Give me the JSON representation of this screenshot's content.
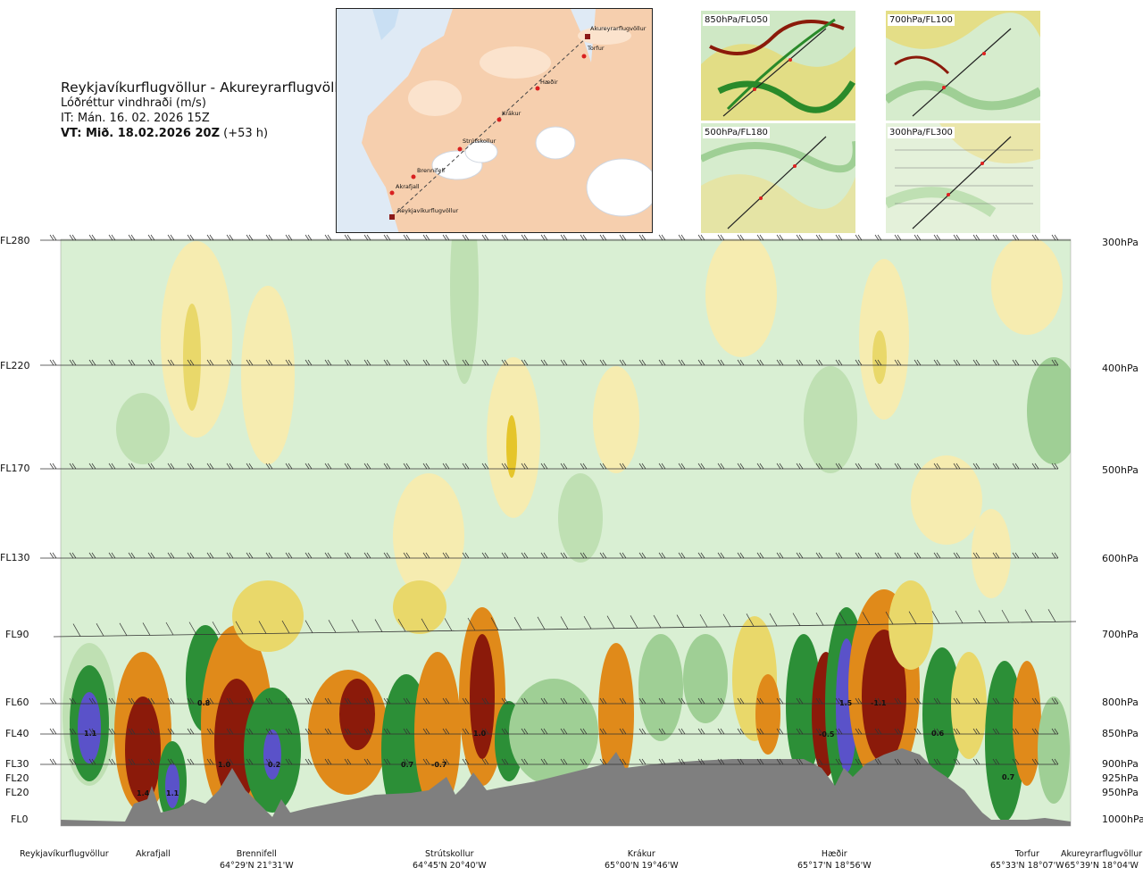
{
  "title": "Reykjavíkurflugvöllur - Akureyrarflugvöllur",
  "subtitle": "Lóðréttur vindhraði (m/s)",
  "it_label": "IT: Mán. 16. 02. 2026 15Z",
  "vt_label": "VT: Mið. 18.02.2026 20Z",
  "vt_offset": "(+53 h)",
  "map_labels": [
    {
      "name": "Akureyrarflugvöllur"
    },
    {
      "name": "Torfur"
    },
    {
      "name": "Hæðir"
    },
    {
      "name": "Krákur"
    },
    {
      "name": "Strútskollur"
    },
    {
      "name": "Brennifell"
    },
    {
      "name": "Akrafjall"
    },
    {
      "name": "Reykjavíkurflugvöllur"
    }
  ],
  "thumbnails": [
    {
      "label": "850hPa/FL050"
    },
    {
      "label": "700hPa/FL100"
    },
    {
      "label": "500hPa/FL180"
    },
    {
      "label": "300hPa/FL300"
    }
  ],
  "chart_data": {
    "type": "heatmap",
    "title": "Reykjavíkurflugvöllur - Akureyrarflugvöllur",
    "variable": "Lóðréttur vindhraði (m/s)",
    "flight_levels": [
      "FL280",
      "FL220",
      "FL170",
      "FL130",
      "FL90",
      "FL60",
      "FL40",
      "FL30",
      "FL20",
      "FL20",
      "FL0"
    ],
    "pressure_levels": [
      "300hPa",
      "400hPa",
      "500hPa",
      "600hPa",
      "700hPa",
      "800hPa",
      "850hPa",
      "900hPa",
      "925hPa",
      "950hPa",
      "1000hPa"
    ],
    "value_labels": [
      "1.1",
      "1.4",
      "1.1",
      "0.8",
      "1.0",
      "0.2",
      "0.7",
      "-0.7",
      "1.0",
      "1.5",
      "-1.1",
      "-0.5",
      "0.6",
      "0.7"
    ],
    "locations": [
      {
        "name": "Reykjavíkurflugvöllur",
        "coord": ""
      },
      {
        "name": "Akrafjall",
        "coord": ""
      },
      {
        "name": "Brennifell",
        "coord": "64°29'N 21°31'W"
      },
      {
        "name": "Strútskollur",
        "coord": "64°45'N 20°40'W"
      },
      {
        "name": "Krákur",
        "coord": "65°00'N 19°46'W"
      },
      {
        "name": "Hæðir",
        "coord": "65°17'N 18°56'W"
      },
      {
        "name": "Torfur",
        "coord": "65°33'N 18°07'W"
      },
      {
        "name": "Akureyrarflugvöllur",
        "coord": "65°39'N 18°04'W"
      }
    ],
    "colors": {
      "strong_down": "#8b1a0a",
      "down": "#e08a1a",
      "weak_down": "#f3e27a",
      "neutral": "#d9efd3",
      "weak_up": "#9fcf95",
      "up": "#2c8f37",
      "strong_up": "#5a52c9",
      "terrain": "#7f7f7f"
    }
  }
}
